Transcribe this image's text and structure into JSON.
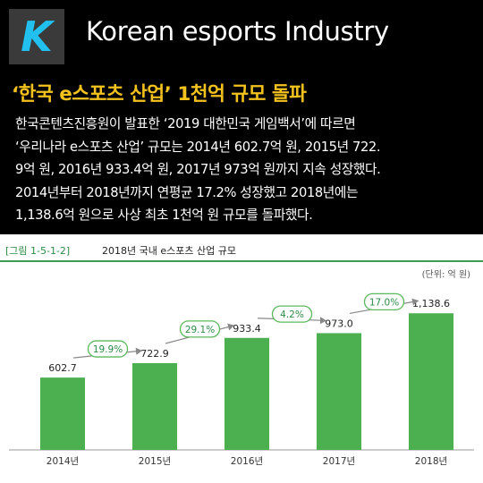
{
  "header": {
    "logo_letter": "K",
    "brand_title": "Korean esports Industry"
  },
  "article": {
    "headline": "‘한국 e스포츠 산업’ 1천억 규모 돌파",
    "body": "한국콘텐츠진흥원이 발표한 ‘2019 대한민국 게임백서’에 따르면\n‘우리나라 e스포츠 산업’ 규모는 2014년 602.7억 원, 2015년 722.\n9억 원, 2016년 933.4억 원, 2017년 973억 원까지 지속 성장했다.\n2014년부터 2018년까지 연평균 17.2% 성장했고 2018년에는\n1,138.6억 원으로 사상 최초 1천억 원 규모를 돌파했다."
  },
  "figure": {
    "label": "[그림 1-5-1-2]",
    "title": "2018년 국내 e스포츠 산업 규모",
    "unit": "(단위: 억 원)"
  },
  "colors": {
    "bar": "#4caf50",
    "growth_border": "#5cb85c",
    "growth_text": "#2e8b46",
    "arrow": "#888888",
    "accent": "#f3c21d",
    "logo": "#22c0ee"
  },
  "chart_data": {
    "type": "bar",
    "categories": [
      "2014년",
      "2015년",
      "2016년",
      "2017년",
      "2018년"
    ],
    "values": [
      602.7,
      722.9,
      933.4,
      973.0,
      1138.6
    ],
    "value_labels": [
      "602.7",
      "722.9",
      "933.4",
      "973.0",
      "1,138.6"
    ],
    "growth_labels": [
      "19.9%",
      "29.1%",
      "4.2%",
      "17.0%"
    ],
    "title": "2018년 국내 e스포츠 산업 규모",
    "ylabel": "",
    "ylim": [
      0,
      1200
    ],
    "legend": "none",
    "grid": false
  }
}
